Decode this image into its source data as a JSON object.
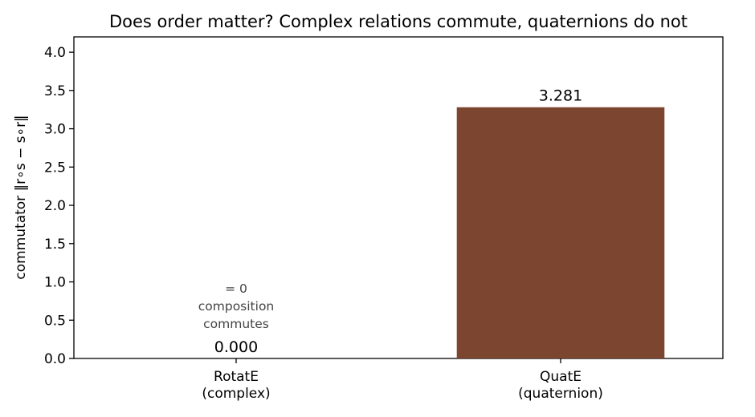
{
  "chart_data": {
    "type": "bar",
    "title": "Does order matter? Complex relations commute, quaternions do not",
    "xlabel": "",
    "ylabel": "commutator  ‖r∘s − s∘r‖",
    "categories": [
      [
        "RotatE",
        "(complex)"
      ],
      [
        "QuatE",
        "(quaternion)"
      ]
    ],
    "values": [
      0.0,
      3.281
    ],
    "value_labels": [
      "0.000",
      "3.281"
    ],
    "colors": [
      "#7b4530",
      "#7b4530"
    ],
    "ylim": [
      0,
      4.2
    ],
    "yticks": [
      0.0,
      0.5,
      1.0,
      1.5,
      2.0,
      2.5,
      3.0,
      3.5,
      4.0
    ],
    "ytick_labels": [
      "0.0",
      "0.5",
      "1.0",
      "1.5",
      "2.0",
      "2.5",
      "3.0",
      "3.5",
      "4.0"
    ],
    "annotations": [
      {
        "category_index": 0,
        "lines": [
          "= 0",
          "composition",
          "commutes"
        ]
      }
    ],
    "grid": false,
    "legend": "none"
  }
}
